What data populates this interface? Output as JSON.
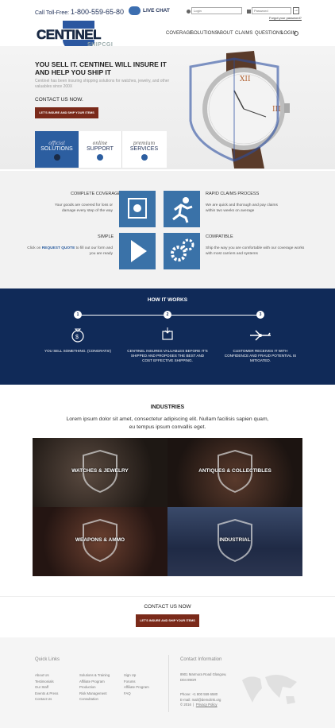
{
  "header": {
    "toll_free_label": "Call Toll-Free:",
    "phone": "1-800-559-65-80",
    "live_chat": "LIVE CHAT",
    "login_placeholder": "Login",
    "password_placeholder": "Password",
    "forgot_password": "Forgot your password?",
    "logo_text": "CENTINEL",
    "logo_sub": "SHIPCGI"
  },
  "nav": [
    "COVERAGE",
    "SOLUTIONS",
    "ABOUT",
    "CLAIMS",
    "QUESTIONS",
    "LOGIN"
  ],
  "hero": {
    "headline": "YOU SELL IT. CENTINEL WILL INSURE IT AND HELP YOU SHIP IT",
    "description": "Centinel has been insuring shipping solutions for watches, jewelry, and other valuables since 200X",
    "contact": "CONTACT US NOW.",
    "cta": "LET'S INSURE AND SHIP YOUR ITEMS",
    "tabs": [
      {
        "small": "official",
        "label": "SOLUTIONS"
      },
      {
        "small": "online",
        "label": "SUPPORT"
      },
      {
        "small": "premium",
        "label": "SERVICES"
      }
    ],
    "carousel_slides": 4,
    "carousel_active": 1
  },
  "features": [
    {
      "title": "COMPLETE COVERAGE",
      "text": "Your goods are covered for loss or damage every step of the way",
      "icon": "safe-icon"
    },
    {
      "title": "RAPID CLAIMS PROCESS",
      "text": "We are quick and thorough and pay claims within two weeks on average",
      "icon": "running-man-icon"
    },
    {
      "title": "SIMPLE",
      "text_pre": "Click on ",
      "link": "REQUEST QUOTE",
      "text_post": " to fill out our form and you are ready",
      "icon": "play-icon"
    },
    {
      "title": "COMPATIBLE",
      "text": "Ship the way you are comfortable with our coverage works with most carriers and systems",
      "icon": "gears-icon"
    }
  ],
  "how": {
    "title": "HOW IT WORKS",
    "steps": [
      {
        "num": "1",
        "caption": "YOU SELL SOMETHING. (CONGRATS!)",
        "icon": "money-bag-icon"
      },
      {
        "num": "2",
        "caption": "CENTINEL INSURES VALUABLES BEFORE IT'S SHIPPED AND PROPOSES THE BEST AND COST EFFECTIVE SHIPPING.",
        "icon": "package-icon"
      },
      {
        "num": "3",
        "caption": "CUSTOMER RECEIVES IT WITH CONFIDENCE AND FRAUD POTENTIAL IS MITIGATED.",
        "icon": "airplane-icon"
      }
    ]
  },
  "industries": {
    "title": "INDUSTRIES",
    "subtitle": "Lorem ipsum dolor sit amet, consectetur adipiscing elit. Nullam facilisis sapien quam, eu tempus ipsum convallis eget.",
    "tiles": [
      "WATCHES & JEWELRY",
      "ANTIQUES & COLLECTIBLES",
      "WEAPONS & AMMO",
      "INDUSTRIAL"
    ]
  },
  "contact": {
    "label": "CONTACT US NOW",
    "cta": "LET'S INSURE AND SHIP YOUR ITEMS"
  },
  "footer": {
    "quick_links_title": "Quick Links",
    "col1": [
      "About Us",
      "Testimonials",
      "Our Staff",
      "Events & Press",
      "Contact Us"
    ],
    "col2": [
      "Solutions & Training",
      "Affiliate Program",
      "Production",
      "Risk Management",
      "Consultation"
    ],
    "col3": [
      "Sign Up",
      "Forums",
      "Affiliate Program",
      "FAQ"
    ],
    "contact_title": "Contact Information",
    "address": [
      "8901 Marmora Road Glasgow,",
      "D04 89GR"
    ],
    "phone": "Phone: +1 800 559 6580",
    "email": "E-mail: mail@demolink.org",
    "copyright": "© 2016",
    "privacy": "Privacy Policy"
  }
}
